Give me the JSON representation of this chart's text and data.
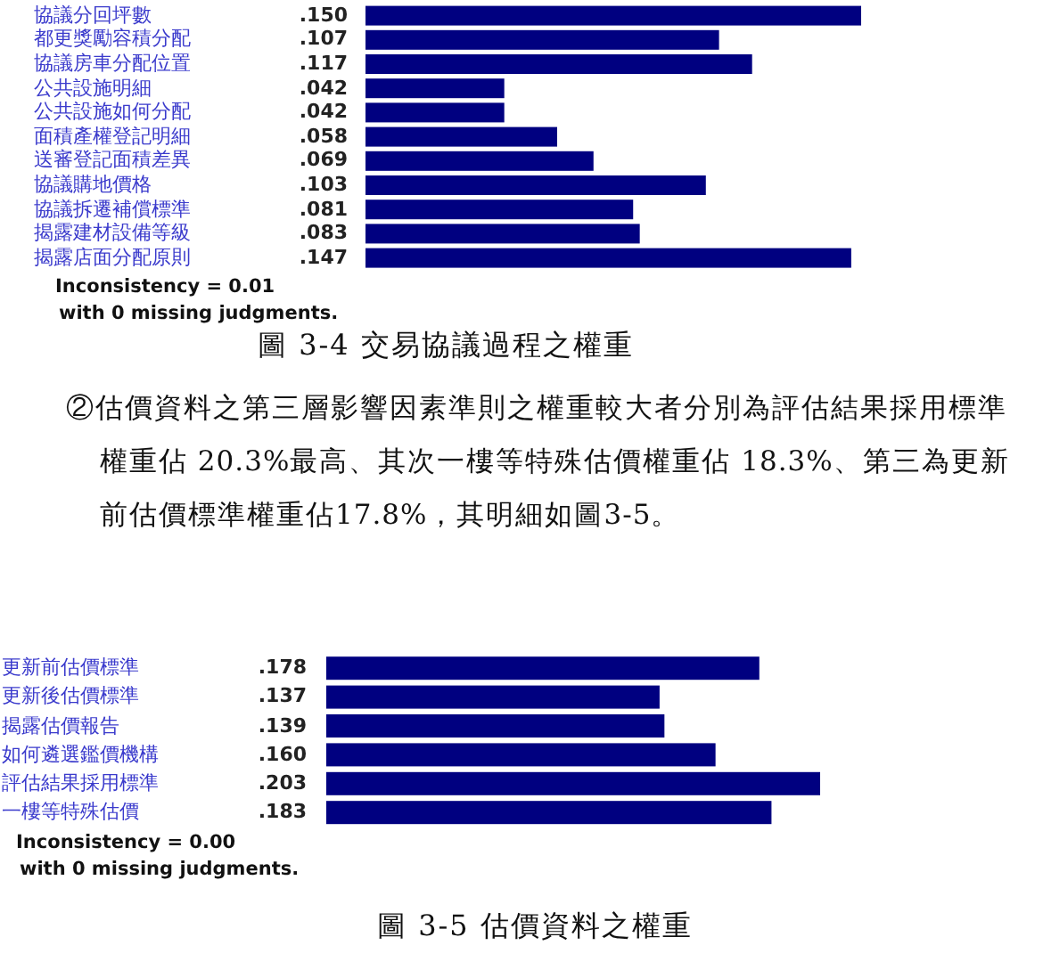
{
  "chart_data": [
    {
      "type": "bar",
      "orientation": "horizontal",
      "title": "圖 3-4 交易協議過程之權重",
      "categories": [
        "協議分回坪數",
        "都更獎勵容積分配",
        "協議房車分配位置",
        "公共設施明細",
        "公共設施如何分配",
        "面積產權登記明細",
        "送審登記面積差異",
        "協議購地價格",
        "協議拆遷補償標準",
        "揭露建材設備等級",
        "揭露店面分配原則"
      ],
      "values": [
        0.15,
        0.107,
        0.117,
        0.042,
        0.042,
        0.058,
        0.069,
        0.103,
        0.081,
        0.083,
        0.147
      ],
      "value_labels": [
        ".150",
        ".107",
        ".117",
        ".042",
        ".042",
        ".058",
        ".069",
        ".103",
        ".081",
        ".083",
        ".147"
      ],
      "color": "#000080",
      "annotations": [
        "Inconsistency = 0.01",
        "with 0  missing judgments."
      ]
    },
    {
      "type": "bar",
      "orientation": "horizontal",
      "title": "圖 3-5 估價資料之權重",
      "categories": [
        "更新前估價標準",
        "更新後估價標準",
        "揭露估價報告",
        "如何遴選鑑價機構",
        "評估結果採用標準",
        "一樓等特殊估價"
      ],
      "values": [
        0.178,
        0.137,
        0.139,
        0.16,
        0.203,
        0.183
      ],
      "value_labels": [
        ".178",
        ".137",
        ".139",
        ".160",
        ".203",
        ".183"
      ],
      "color": "#000080",
      "annotations": [
        "Inconsistency = 0.00",
        "with 0  missing judgments.",
        "②估價資料之第三層影響因素準則之權重較大者分別為評估結果採用標準權重佔 20.3%最高、其次一樓等特殊估價權重佔 18.3%、第三為更新前估價標準權重佔17.8%，其明細如圖3-5。"
      ]
    }
  ]
}
